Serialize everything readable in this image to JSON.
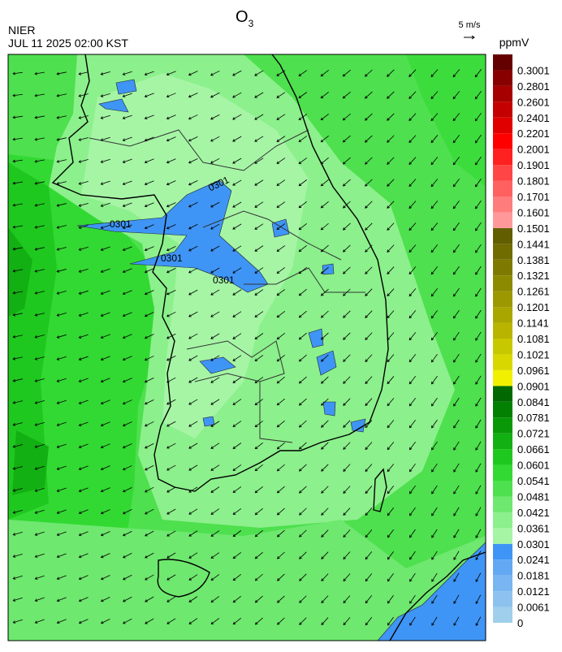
{
  "header": {
    "org": "NIER",
    "datetime": "JUL 11 2025 02:00 KST",
    "title": "O",
    "title_subscript": "3",
    "vector_scale": "5 m/s"
  },
  "colorbar": {
    "unit": "ppmV",
    "ticks": [
      0,
      0.0061,
      0.0121,
      0.0181,
      0.0241,
      0.0301,
      0.0361,
      0.0421,
      0.0481,
      0.0541,
      0.0601,
      0.0661,
      0.0721,
      0.0781,
      0.0841,
      0.0901,
      0.0961,
      0.1021,
      0.1081,
      0.1141,
      0.1201,
      0.1261,
      0.1321,
      0.1381,
      0.1441,
      0.1501,
      0.1601,
      0.1701,
      0.1801,
      0.1901,
      0.2001,
      0.2201,
      0.2401,
      0.2601,
      0.2801,
      0.3001
    ],
    "colors": [
      "#9fcfeb",
      "#8ec2ee",
      "#79b5f0",
      "#63a8f2",
      "#3f95f5",
      "#a5f5a5",
      "#8cf08c",
      "#6ee86e",
      "#4ee04e",
      "#32d932",
      "#1fc81f",
      "#12b012",
      "#089808",
      "#028002",
      "#006a00",
      "#f0f000",
      "#d8d800",
      "#c8c800",
      "#b8b400",
      "#aaa600",
      "#9c9800",
      "#8c8a00",
      "#7e7a00",
      "#706c00",
      "#625e00",
      "#ff9999",
      "#ff7c7c",
      "#ff6060",
      "#ff4545",
      "#ff2020",
      "#ff0000",
      "#e00000",
      "#c40000",
      "#a60000",
      "#880000",
      "#650000"
    ]
  },
  "map": {
    "contour_labels": [
      "0301",
      "0301",
      "0301",
      "0301"
    ]
  }
}
